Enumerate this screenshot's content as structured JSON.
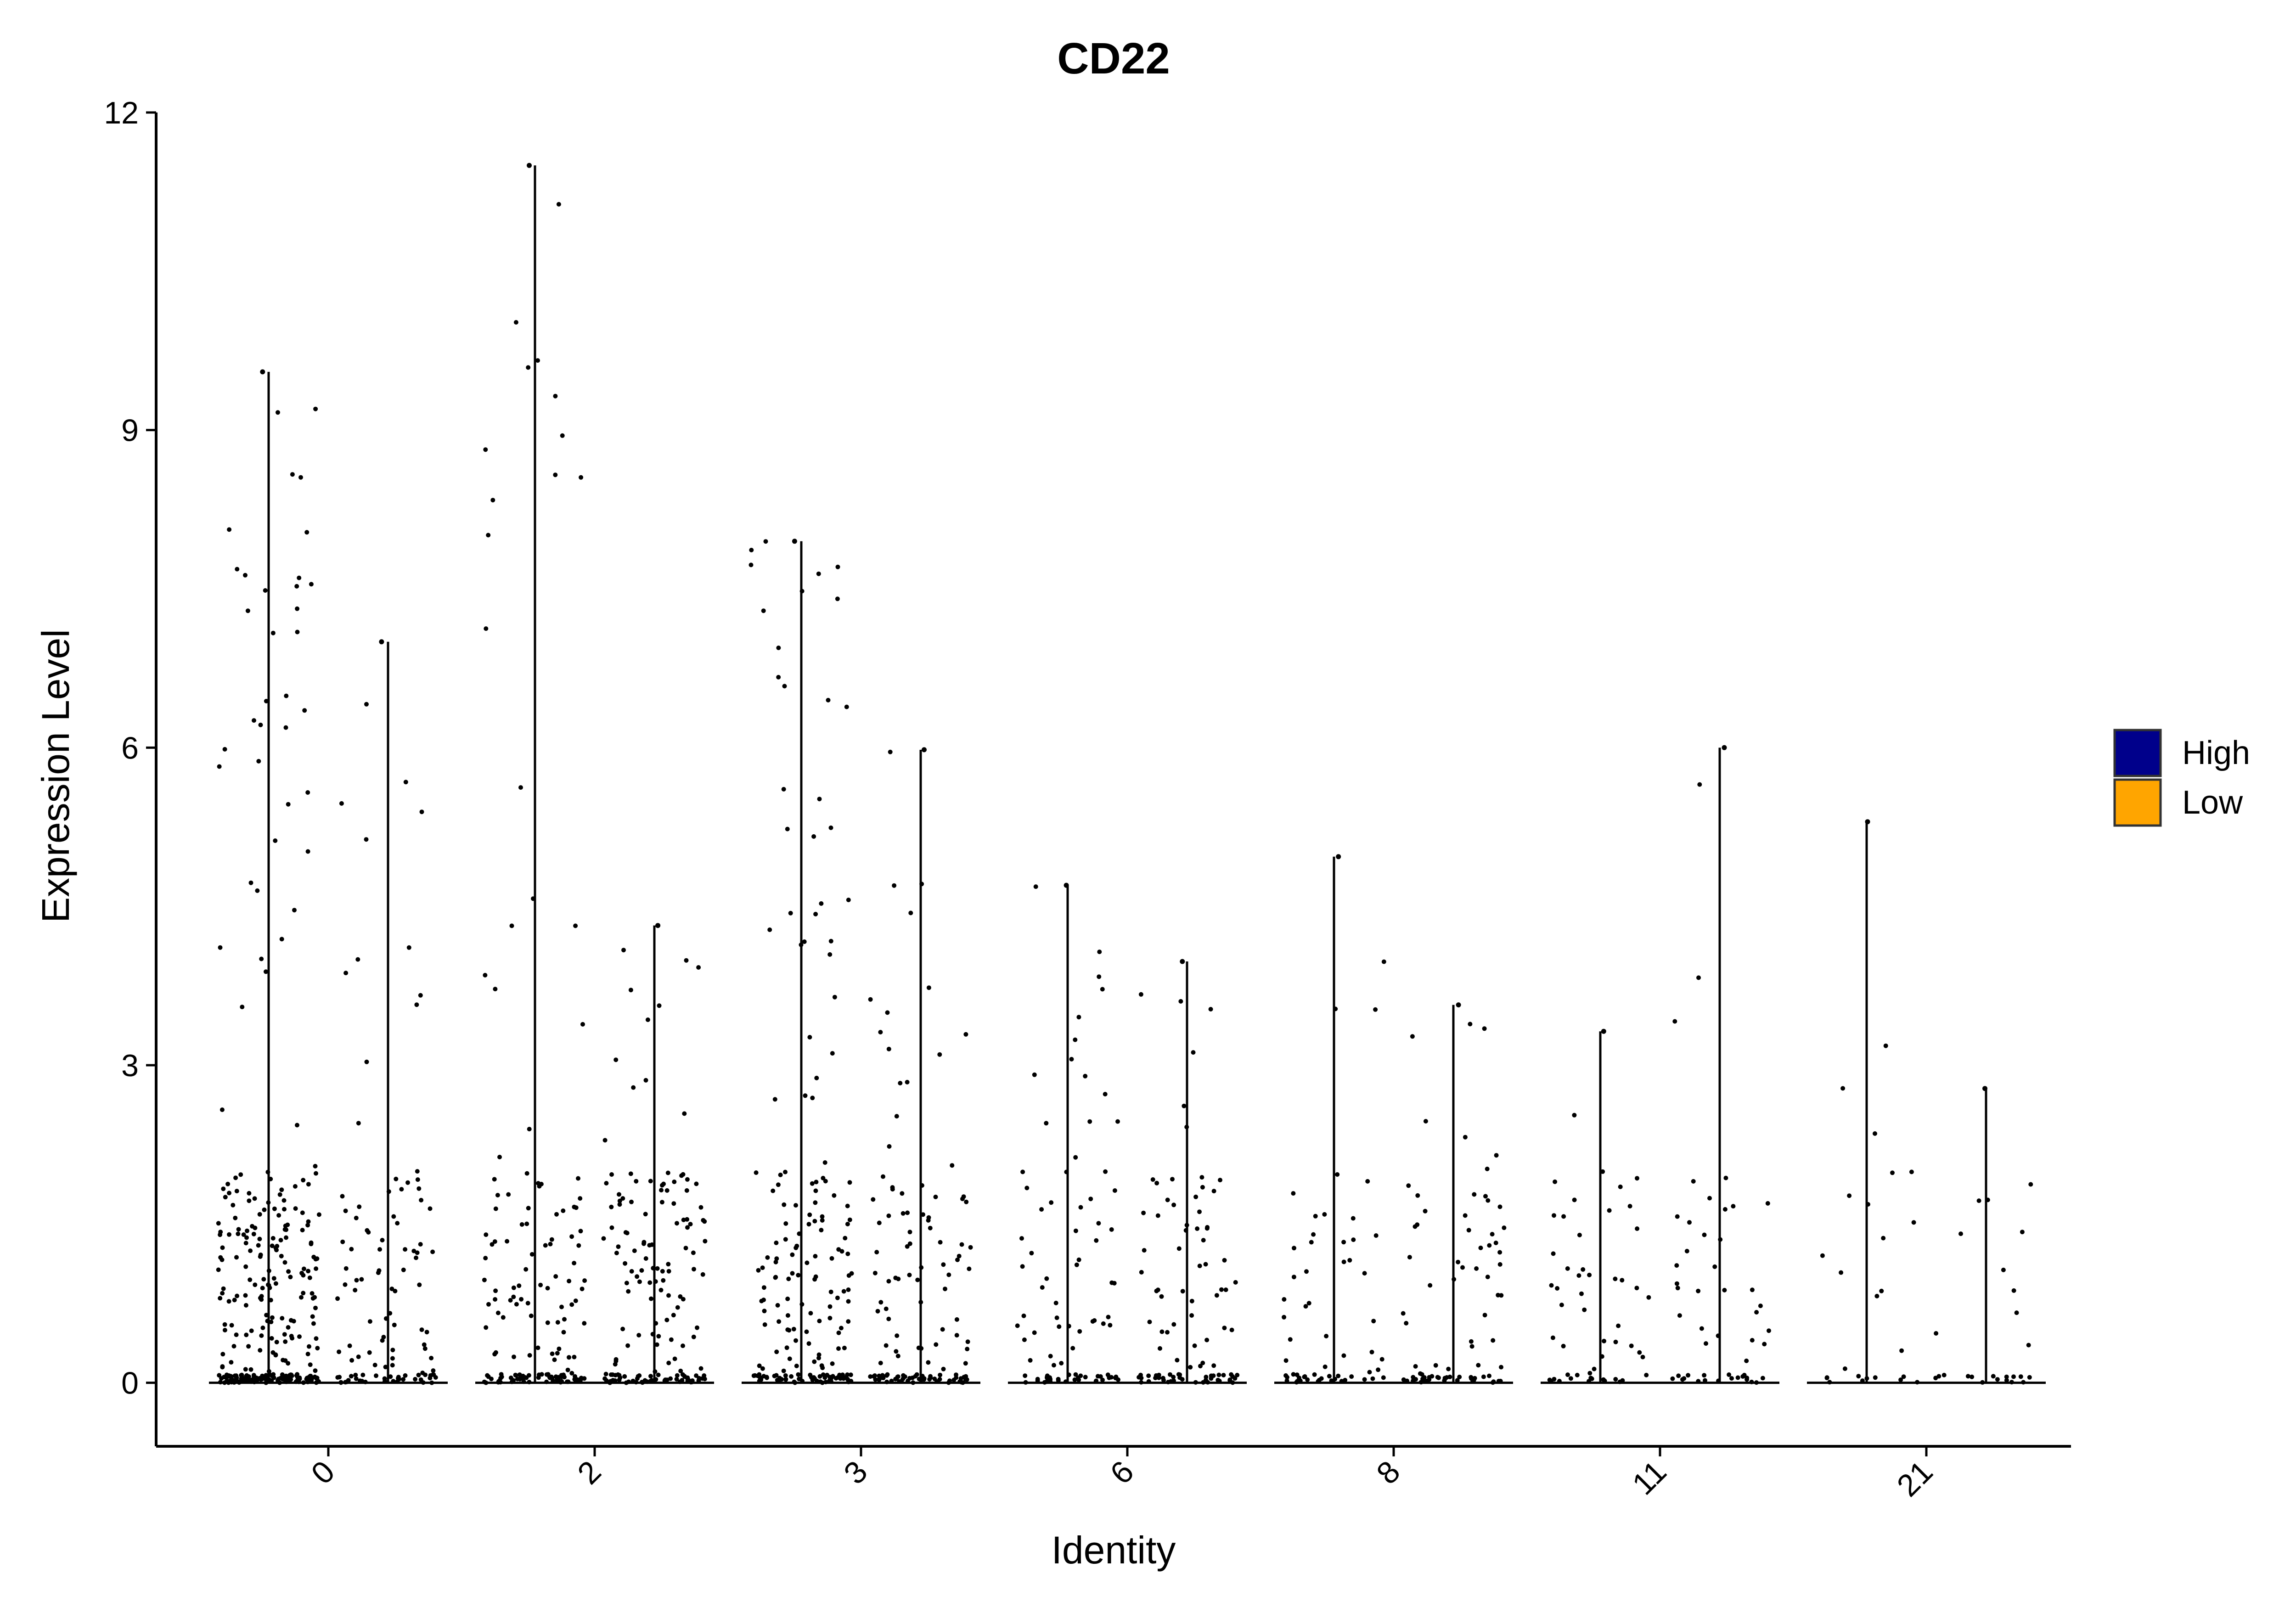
{
  "chart_data": {
    "type": "violin",
    "title": "CD22",
    "xlabel": "Identity",
    "ylabel": "Expression Level",
    "ylim": [
      -0.6,
      12
    ],
    "yticks": [
      0,
      3,
      6,
      9,
      12
    ],
    "categories": [
      "0",
      "2",
      "3",
      "6",
      "8",
      "11",
      "21"
    ],
    "legend": {
      "placement": "right",
      "entries": [
        {
          "name": "High",
          "color": "#00008B"
        },
        {
          "name": "Low",
          "color": "#FFA500"
        }
      ]
    },
    "series": [
      {
        "name": "High",
        "max": [
          9.55,
          11.5,
          7.95,
          4.7,
          4.97,
          3.32,
          5.3
        ],
        "n_points": [
          320,
          160,
          190,
          90,
          60,
          55,
          25
        ]
      },
      {
        "name": "Low",
        "max": [
          7.0,
          4.32,
          5.98,
          3.98,
          3.57,
          6.0,
          2.78
        ],
        "n_points": [
          110,
          160,
          130,
          95,
          80,
          50,
          25
        ]
      }
    ]
  }
}
